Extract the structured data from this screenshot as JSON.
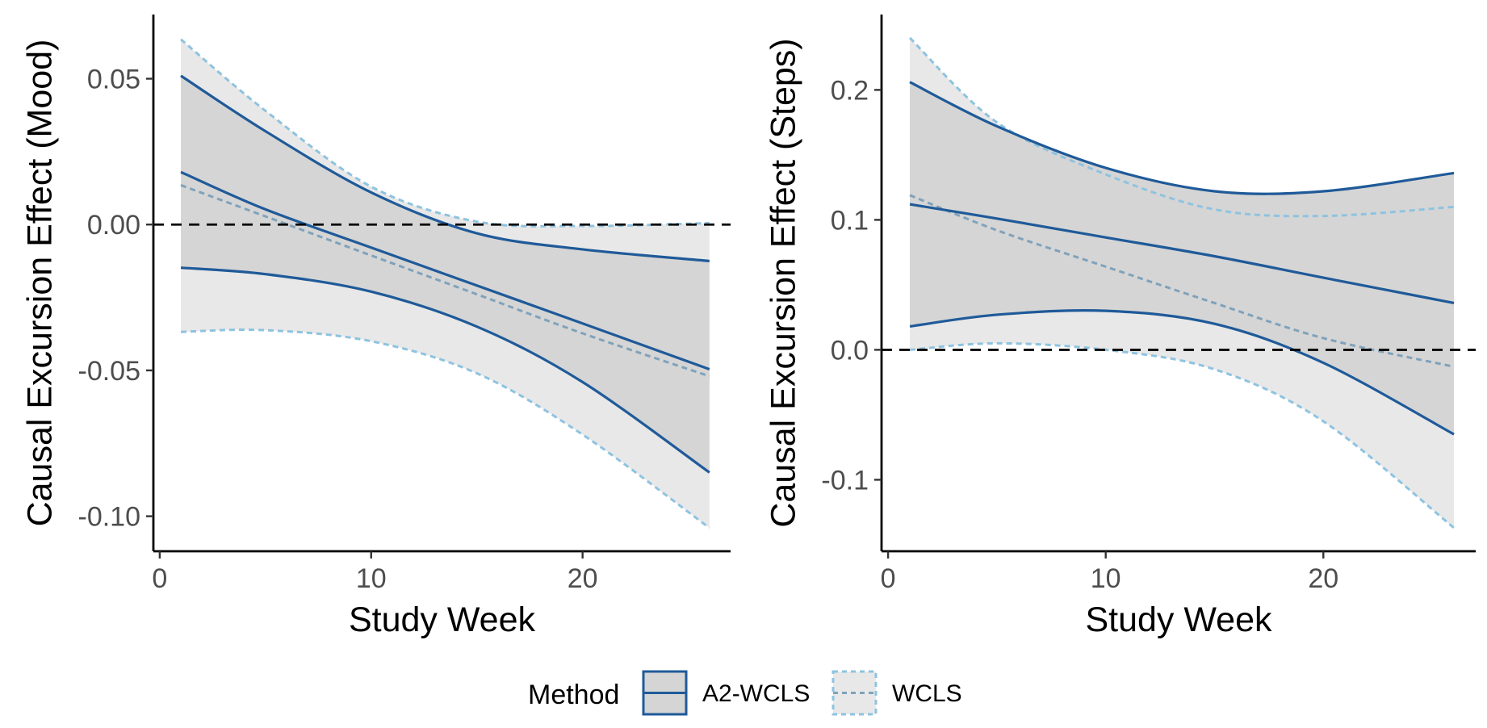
{
  "chart_data": [
    {
      "type": "line",
      "xlabel": "Study Week",
      "ylabel": "Causal Excursion Effect (Mood)",
      "xlim": [
        -0.3,
        27
      ],
      "ylim": [
        -0.112,
        0.072
      ],
      "xticks": [
        0,
        10,
        20
      ],
      "xtick_labels": [
        "0",
        "10",
        "20"
      ],
      "yticks": [
        0.05,
        0.0,
        -0.05,
        -0.1
      ],
      "ytick_labels": [
        "0.05",
        "0.00",
        "-0.05",
        "-0.10"
      ],
      "reference_line": 0,
      "x": [
        1,
        5,
        10,
        15,
        20,
        26
      ],
      "series": [
        {
          "name": "A2-WCLS",
          "estimate": [
            0.018,
            0.0052,
            -0.0079,
            -0.0209,
            -0.0339,
            -0.0496
          ],
          "lower": [
            -0.0148,
            -0.017,
            -0.023,
            -0.035,
            -0.054,
            -0.085
          ],
          "upper": [
            0.051,
            0.032,
            0.011,
            -0.003,
            -0.0085,
            -0.0125
          ]
        },
        {
          "name": "WCLS",
          "estimate": [
            0.0135,
            0.0028,
            -0.0106,
            -0.0239,
            -0.0373,
            -0.052
          ],
          "lower": [
            -0.0368,
            -0.0362,
            -0.04,
            -0.051,
            -0.072,
            -0.104
          ],
          "upper": [
            0.0635,
            0.039,
            0.013,
            0.001,
            -0.0005,
            0.0005
          ]
        }
      ]
    },
    {
      "type": "line",
      "xlabel": "Study Week",
      "ylabel": "Causal Excursion Effect (Steps)",
      "xlim": [
        -0.3,
        27
      ],
      "ylim": [
        -0.155,
        0.258
      ],
      "xticks": [
        0,
        10,
        20
      ],
      "xtick_labels": [
        "0",
        "10",
        "20"
      ],
      "yticks": [
        0.2,
        0.1,
        0.0,
        -0.1
      ],
      "ytick_labels": [
        "0.2",
        "0.1",
        "0.0",
        "-0.1"
      ],
      "reference_line": 0,
      "x": [
        1,
        5,
        10,
        15,
        20,
        26
      ],
      "series": [
        {
          "name": "A2-WCLS",
          "estimate": [
            0.112,
            0.101,
            0.0865,
            0.072,
            0.0555,
            0.036
          ],
          "lower": [
            0.018,
            0.027,
            0.03,
            0.02,
            -0.01,
            -0.065
          ],
          "upper": [
            0.206,
            0.172,
            0.14,
            0.122,
            0.122,
            0.136
          ]
        },
        {
          "name": "WCLS",
          "estimate": [
            0.119,
            0.092,
            0.064,
            0.036,
            0.009,
            -0.013
          ],
          "lower": [
            0.0,
            0.005,
            0.0,
            -0.015,
            -0.055,
            -0.137
          ],
          "upper": [
            0.24,
            0.175,
            0.135,
            0.108,
            0.103,
            0.11
          ]
        }
      ]
    }
  ],
  "legend": {
    "title": "Method",
    "items": [
      {
        "label": "A2-WCLS",
        "color": "#1f5a99",
        "style": "solid"
      },
      {
        "label": "WCLS",
        "color": "#8ec3e0",
        "style": "dashed"
      }
    ]
  },
  "colors": {
    "a2_line": "#1f5a99",
    "wcls_band_line": "#8ec3e0",
    "wcls_estimate": "#7fa2bb",
    "wcls_ribbon": "#e8e8e8",
    "a2_ribbon": "#d5d5d5",
    "reference_line": "#000000"
  }
}
